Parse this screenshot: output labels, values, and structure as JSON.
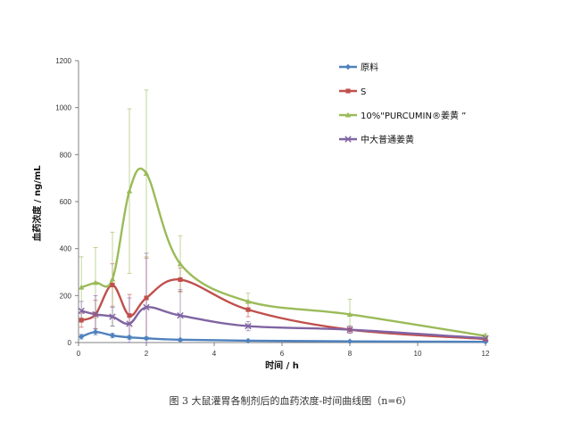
{
  "caption": "图 3  大鼠灌胃各制剂后的血药浓度-时间曲线图（n=6）",
  "chart_data": {
    "type": "line",
    "title": "",
    "xlabel": "时间 / h",
    "ylabel": "血药浓度 / ng/mL",
    "xlim": [
      0,
      12
    ],
    "ylim": [
      0,
      1200
    ],
    "xticks": [
      0,
      2,
      4,
      6,
      8,
      10,
      12
    ],
    "yticks": [
      0,
      200,
      400,
      600,
      800,
      1000,
      1200
    ],
    "grid": false,
    "legend_position": "top-right",
    "series": [
      {
        "name": "原料",
        "color": "#4f81bd",
        "marker": "diamond",
        "x": [
          0.083,
          0.5,
          1,
          1.5,
          2,
          3,
          5,
          8,
          12
        ],
        "y": [
          25,
          45,
          30,
          22,
          18,
          12,
          8,
          5,
          3
        ],
        "err": [
          10,
          12,
          10,
          8,
          6,
          4,
          3,
          2,
          1
        ]
      },
      {
        "name": "S",
        "color": "#c0504d",
        "marker": "square",
        "x": [
          0.083,
          0.5,
          1,
          1.5,
          2,
          3,
          5,
          8,
          12
        ],
        "y": [
          95,
          120,
          245,
          115,
          190,
          268,
          140,
          55,
          15
        ],
        "err": [
          30,
          60,
          90,
          90,
          170,
          50,
          30,
          15,
          5
        ]
      },
      {
        "name": "10%\"PURCUMIN®姜黄 ”",
        "color": "#9bbb59",
        "marker": "triangle",
        "x": [
          0.083,
          0.5,
          1,
          1.5,
          2,
          3,
          5,
          8,
          12
        ],
        "y": [
          235,
          255,
          270,
          645,
          720,
          335,
          175,
          120,
          28
        ],
        "err": [
          130,
          150,
          200,
          350,
          355,
          120,
          35,
          65,
          10
        ]
      },
      {
        "name": "中大普通姜黄",
        "color": "#8064a2",
        "marker": "x",
        "x": [
          0.083,
          0.5,
          1,
          1.5,
          2,
          3,
          5,
          8,
          12
        ],
        "y": [
          135,
          120,
          110,
          80,
          150,
          115,
          70,
          55,
          18
        ],
        "err": [
          40,
          80,
          40,
          110,
          230,
          110,
          20,
          15,
          5
        ]
      }
    ]
  }
}
